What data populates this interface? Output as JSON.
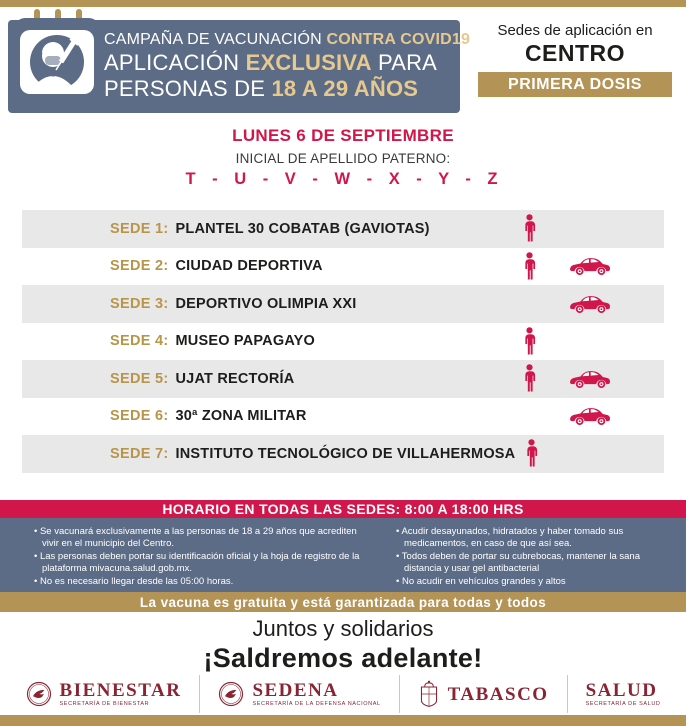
{
  "colors": {
    "gold": "#b39356",
    "gold_light_accent": "#e8c98d",
    "slate_blue": "#5c6c86",
    "crimson": "#d0164a",
    "maroon": "#8a2432",
    "row_gray": "#e8e8e9"
  },
  "header": {
    "icon": "nurse-vaccine-calendar-icon",
    "title_line1_normal": "CAMPAÑA DE VACUNACIÓN ",
    "title_line1_accent": "CONTRA COVID19",
    "title_line2_pre": "APLICACIÓN ",
    "title_line2_accent": "EXCLUSIVA",
    "title_line2_post": " PARA",
    "title_line3_pre": "PERSONAS DE ",
    "title_line3_accent": "18 A 29 AÑOS",
    "right": {
      "line1": "Sedes de aplicación en",
      "line2": "CENTRO",
      "badge": "PRIMERA DOSIS"
    }
  },
  "schedule": {
    "date": "LUNES 6 DE SEPTIEMBRE",
    "initials_label": "INICIAL DE APELLIDO PATERNO:",
    "letters": "T - U - V - W - X - Y - Z"
  },
  "sedes": [
    {
      "label": "SEDE 1:",
      "name": "PLANTEL 30 COBATAB (GAVIOTAS)",
      "walk": true,
      "car": false
    },
    {
      "label": "SEDE 2:",
      "name": "CIUDAD DEPORTIVA",
      "walk": true,
      "car": true
    },
    {
      "label": "SEDE 3:",
      "name": "DEPORTIVO OLIMPIA XXI",
      "walk": false,
      "car": true
    },
    {
      "label": "SEDE 4:",
      "name": "MUSEO PAPAGAYO",
      "walk": true,
      "car": false
    },
    {
      "label": "SEDE 5:",
      "name": "UJAT RECTORÍA",
      "walk": true,
      "car": true
    },
    {
      "label": "SEDE 6:",
      "name": "30ª ZONA MILITAR",
      "walk": false,
      "car": true
    },
    {
      "label": "SEDE 7:",
      "name": "INSTITUTO TECNOLÓGICO DE VILLAHERMOSA",
      "walk": true,
      "car": false
    }
  ],
  "transport_icons": [
    "pedestrian-icon",
    "car-icon"
  ],
  "hours_banner": "HORARIO EN TODAS LAS SEDES: 8:00 A 18:00 HRS",
  "notes": {
    "left": [
      "Se vacunará exclusivamente a las personas de 18 a 29 años que acrediten vivir en el municipio del Centro.",
      "Las personas deben portar su identificación oficial y la hoja de registro de la plataforma mivacuna.salud.gob.mx.",
      "No es necesario llegar desde las 05:00 horas."
    ],
    "right": [
      "Acudir desayunados, hidratados y haber tomado sus medicamentos, en caso de que así sea.",
      "Todos deben de portar su cubrebocas, mantener la sana distancia y usar gel antibacterial",
      "No acudir en vehículos grandes y altos"
    ]
  },
  "gold_banner": "La vacuna es gratuita y está garantizada para todas y todos",
  "slogan": {
    "line1": "Juntos y solidarios",
    "line2": "¡Saldremos adelante!"
  },
  "footer_logos": [
    {
      "name": "BIENESTAR",
      "sub": "SECRETARÍA DE BIENESTAR",
      "icon": "eagle-seal-icon"
    },
    {
      "name": "SEDENA",
      "sub": "SECRETARÍA DE LA DEFENSA NACIONAL",
      "icon": "eagle-seal-icon"
    },
    {
      "name": "TABASCO",
      "sub": "",
      "icon": "tabasco-crest-icon"
    },
    {
      "name": "SALUD",
      "sub": "SECRETARÍA DE SALUD",
      "icon": ""
    }
  ]
}
